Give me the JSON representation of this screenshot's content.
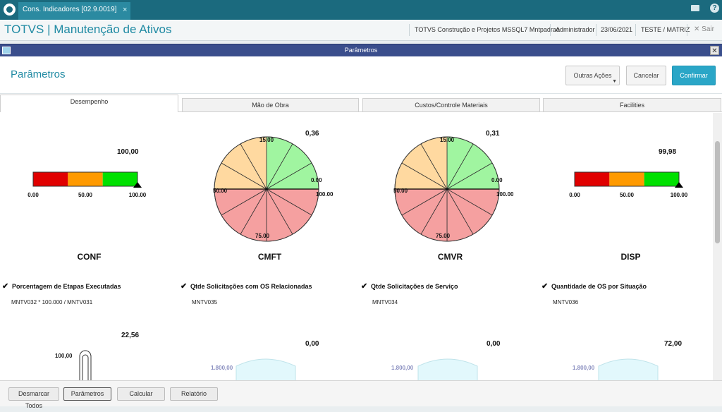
{
  "window": {
    "tab_label": "Cons. Indicadores [02.9.0019]",
    "tab_close": "×",
    "help": "?"
  },
  "app": {
    "title": "TOTVS | Manutenção de Ativos",
    "company": "TOTVS Construção e Projetos MSSQL7 Mntpadrao",
    "user": "Administrador",
    "date": "23/06/2021",
    "branch": "TESTE / MATRIZ",
    "exit_label": "Sair"
  },
  "dialog": {
    "bar_title": "Parâmetros",
    "title": "Parâmetros",
    "buttons": {
      "other_actions": "Outras Ações",
      "cancel": "Cancelar",
      "confirm": "Confirmar"
    },
    "tabs": [
      "Desempenho",
      "Mão de Obra",
      "Custos/Controle Materiais",
      "Facilities"
    ]
  },
  "colors": {
    "red": "#e00000",
    "orange": "#ff9a00",
    "green": "#00e000",
    "pie_green": "#a0f5a0",
    "pie_orange": "#ffd9a0",
    "pie_red": "#f5a0a0",
    "brand": "#1b6a7e",
    "accent": "#1f8aa3"
  },
  "indicators": [
    {
      "name": "CONF",
      "type": "bar-gauge",
      "value_text": "100,00",
      "value": 100,
      "ticks": [
        "0.00",
        "50.00",
        "100.00"
      ],
      "checkbox_label": "Porcentagem de Etapas Executadas",
      "formula": "MNTV032 * 100.000 / MNTV031",
      "checked": true
    },
    {
      "name": "CMFT",
      "type": "pie-gauge",
      "value_text": "0,36",
      "value": 0.36,
      "ticks": [
        "15.00",
        "0.00",
        "50.00",
        "100.00",
        "75.00"
      ],
      "checkbox_label": "Qtde Solicitações com OS Relacionadas",
      "formula": "MNTV035",
      "checked": true
    },
    {
      "name": "CMVR",
      "type": "pie-gauge",
      "value_text": "0,31",
      "value": 0.31,
      "ticks": [
        "15.00",
        "0.00",
        "50.00",
        "100.00",
        "75.00"
      ],
      "checkbox_label": "Qtde Solicitações de Serviço",
      "formula": "MNTV034",
      "checked": true
    },
    {
      "name": "DISP",
      "type": "bar-gauge",
      "value_text": "99,98",
      "value": 99.98,
      "ticks": [
        "0.00",
        "50.00",
        "100.00"
      ],
      "checkbox_label": "Quantidade de OS por Situação",
      "formula": "MNTV036",
      "checked": true
    }
  ],
  "row2": [
    {
      "value_text": "22,56",
      "scale_text": "100,00"
    },
    {
      "value_text": "0,00",
      "scale_text": "1.800,00"
    },
    {
      "value_text": "0,00",
      "scale_text": "1.800,00"
    },
    {
      "value_text": "72,00",
      "scale_text": "1.800,00"
    }
  ],
  "footer": {
    "buttons": [
      "Desmarcar Todos",
      "Parâmetros",
      "Calcular",
      "Relatório"
    ]
  }
}
